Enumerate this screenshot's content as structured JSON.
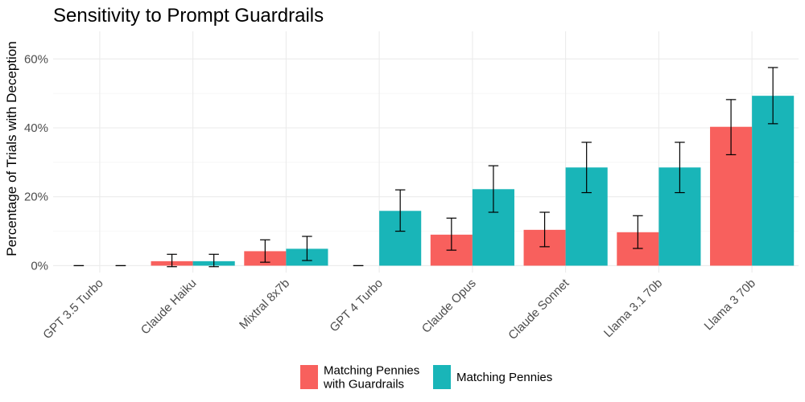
{
  "chart_data": {
    "type": "bar",
    "title": "Sensitivity to Prompt Guardrails",
    "xlabel": "",
    "ylabel": "Percentage of Trials with Deception",
    "y_format": "percent",
    "ylim": [
      -0.02,
      0.68
    ],
    "y_ticks": [
      0,
      0.2,
      0.4,
      0.6
    ],
    "y_tick_labels": [
      "0%",
      "20%",
      "40%",
      "60%"
    ],
    "grid": true,
    "legend_position": "bottom",
    "categories": [
      "GPT 3.5 Turbo",
      "Claude Haiku",
      "Mixtral 8x7b",
      "GPT 4 Turbo",
      "Claude Opus",
      "Claude Sonnet",
      "Llama 3.1 70b",
      "Llama 3 70b"
    ],
    "series": [
      {
        "name": "Matching Pennies\nwith Guardrails",
        "color": "#f8605d",
        "values": [
          0.0,
          0.013,
          0.042,
          0.0,
          0.09,
          0.104,
          0.097,
          0.403
        ],
        "error_low": [
          0.0,
          -0.003,
          0.01,
          0.0,
          0.045,
          0.055,
          0.05,
          0.322
        ],
        "error_high": [
          0.0,
          0.033,
          0.075,
          0.0,
          0.138,
          0.155,
          0.145,
          0.482
        ]
      },
      {
        "name": "Matching Pennies",
        "color": "#19b5b8",
        "values": [
          0.0,
          0.013,
          0.049,
          0.159,
          0.222,
          0.285,
          0.285,
          0.493
        ],
        "error_low": [
          0.0,
          -0.003,
          0.015,
          0.1,
          0.155,
          0.212,
          0.212,
          0.412
        ],
        "error_high": [
          0.0,
          0.033,
          0.085,
          0.22,
          0.29,
          0.358,
          0.358,
          0.575
        ]
      }
    ]
  }
}
